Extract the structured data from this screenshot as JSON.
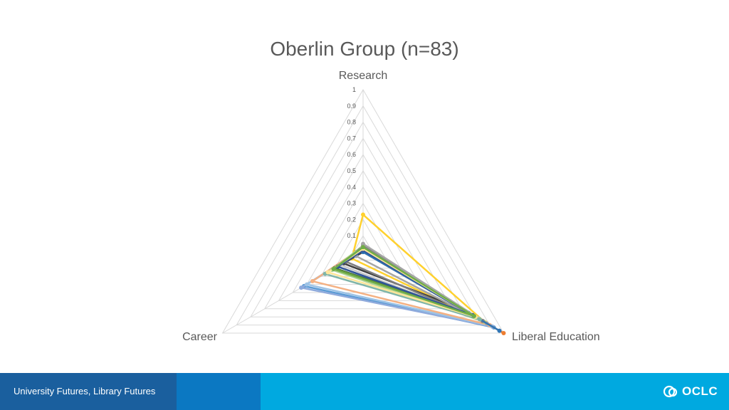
{
  "chart_data": {
    "type": "radar",
    "title": "Oberlin Group (n=83)",
    "axes": [
      "Research",
      "Liberal Education",
      "Career"
    ],
    "rlim": [
      0,
      1
    ],
    "ticks": [
      "0",
      "0.1",
      "0.2",
      "0.3",
      "0.4",
      "0.5",
      "0.6",
      "0.7",
      "0.8",
      "0.9",
      "1"
    ],
    "series": [
      {
        "color": "#FFD12E",
        "values": [
          0.23,
          0.87,
          0.08
        ]
      },
      {
        "color": "#5B9BD5",
        "values": [
          0.02,
          0.93,
          0.42
        ]
      },
      {
        "color": "#8FAADC",
        "values": [
          0.01,
          0.92,
          0.44
        ]
      },
      {
        "color": "#9DC3E6",
        "values": [
          0.02,
          0.91,
          0.4
        ]
      },
      {
        "color": "#F4B183",
        "values": [
          0.03,
          0.9,
          0.36
        ]
      },
      {
        "color": "#A9D18E",
        "values": [
          0.04,
          0.86,
          0.22
        ]
      },
      {
        "color": "#1F4E9A",
        "values": [
          0.02,
          0.75,
          0.2
        ]
      },
      {
        "color": "#548235",
        "values": [
          0.03,
          0.8,
          0.2
        ]
      },
      {
        "color": "#404040",
        "values": [
          0.0,
          0.7,
          0.14
        ]
      },
      {
        "color": "#7F7F7F",
        "values": [
          0.04,
          0.85,
          0.12
        ]
      },
      {
        "color": "#A5A5A5",
        "values": [
          0.05,
          0.88,
          0.05
        ]
      },
      {
        "color": "#C9C9C9",
        "values": [
          0.03,
          0.82,
          0.16
        ]
      },
      {
        "color": "#ED7D31",
        "values": [
          0.0,
          1.0,
          0.0
        ]
      },
      {
        "color": "#2E75B6",
        "values": [
          0.0,
          0.97,
          0.0
        ]
      },
      {
        "color": "#7FB5A8",
        "values": [
          0.02,
          0.83,
          0.27
        ]
      },
      {
        "color": "#2F5597",
        "values": [
          0.01,
          0.78,
          0.18
        ]
      },
      {
        "color": "#FFE699",
        "values": [
          0.02,
          0.8,
          0.25
        ]
      },
      {
        "color": "#70AD47",
        "values": [
          0.03,
          0.79,
          0.21
        ]
      }
    ]
  },
  "footer": {
    "text": "University Futures, Library Futures",
    "logo_text": "OCLC"
  }
}
